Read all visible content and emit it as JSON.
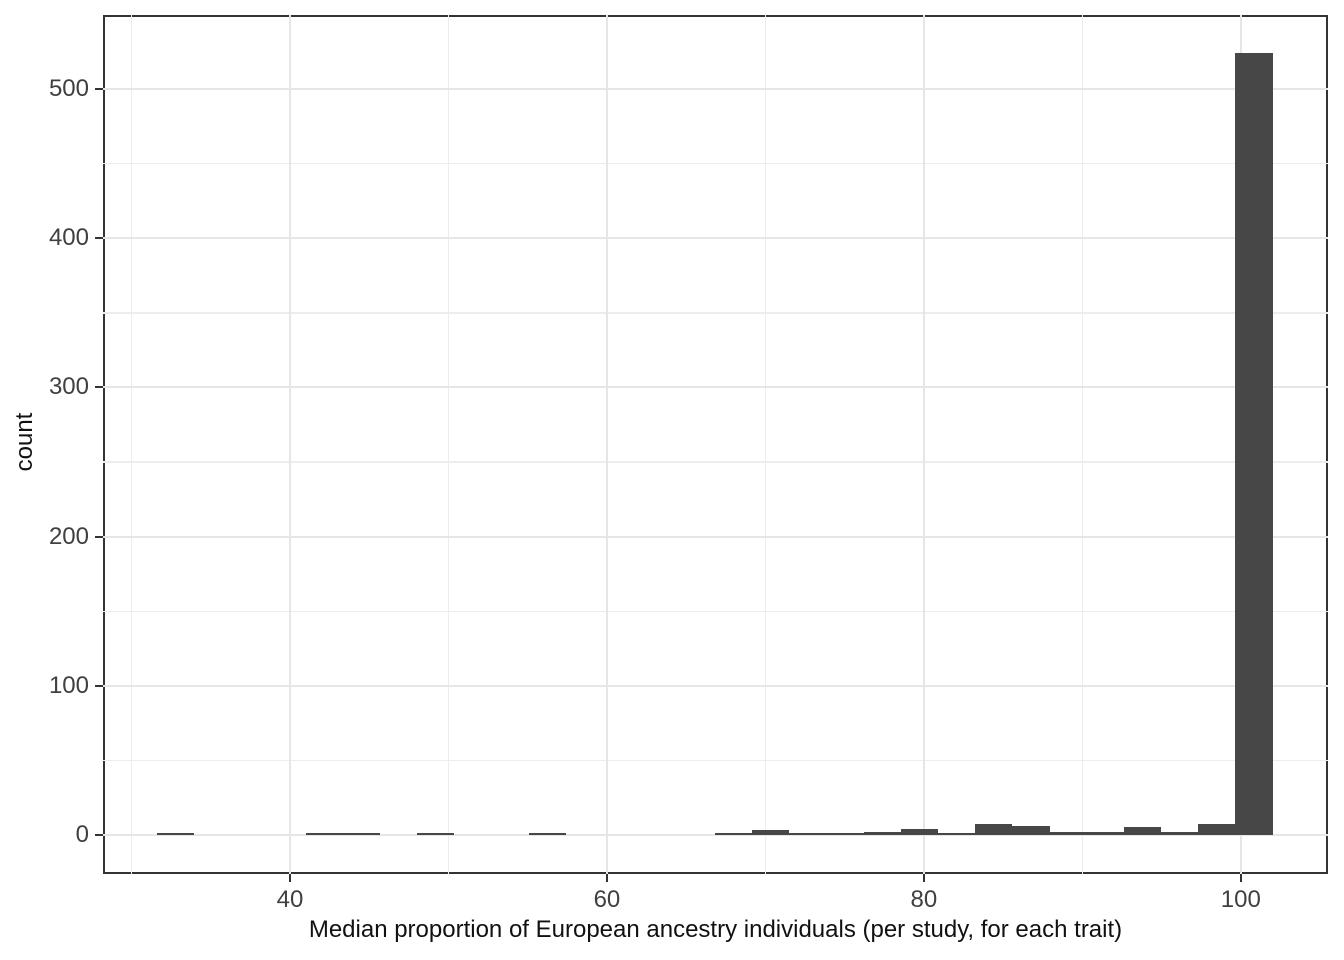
{
  "chart_data": {
    "type": "bar",
    "subtype": "histogram",
    "title": "",
    "xlabel": "Median proportion of European ancestry individuals (per study, for each trait)",
    "ylabel": "count",
    "bin_start": 31.6,
    "bin_width": 2.347,
    "counts": [
      1,
      0,
      0,
      0,
      1,
      1,
      0,
      1,
      0,
      0,
      1,
      0,
      0,
      0,
      0,
      1,
      3,
      1,
      1,
      2,
      4,
      1,
      7,
      6,
      2,
      2,
      5,
      2,
      7,
      524
    ],
    "max_count": 524,
    "x_ticks": [
      40,
      60,
      80,
      100
    ],
    "x_minor_gridlines": [
      30,
      50,
      70,
      90
    ],
    "y_ticks": [
      0,
      100,
      200,
      300,
      400,
      500
    ],
    "y_minor_gridlines": [
      50,
      150,
      250,
      350,
      450
    ],
    "xlim": [
      28.2,
      105.5
    ],
    "ylim": [
      -26.2,
      549.7
    ],
    "grid": true,
    "legend_position": "none",
    "colors": {
      "bar_fill": "#474747",
      "grid_major": "#e6e6e6",
      "grid_minor": "#ededed",
      "panel_border": "#333333",
      "tick_mark": "#333333",
      "tick_text": "#404040",
      "axis_title_text": "#111111",
      "background": "#ffffff"
    }
  }
}
